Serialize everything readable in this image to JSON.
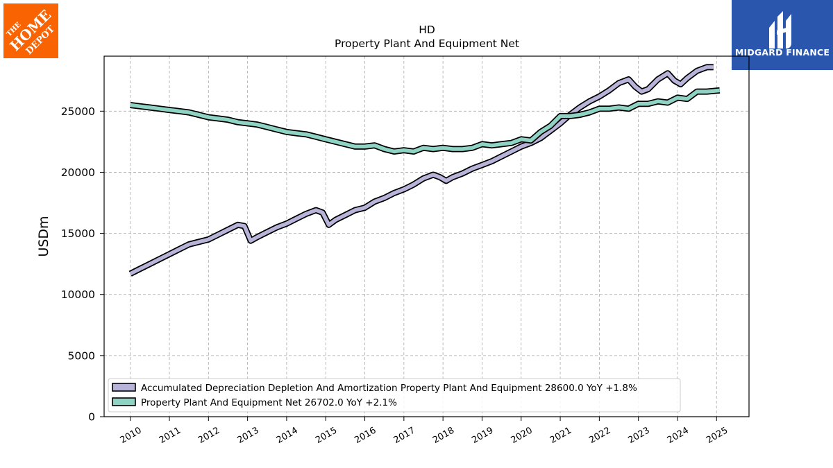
{
  "brand": {
    "left_logo_text": [
      "THE",
      "HOME",
      "DEPOT"
    ],
    "right_logo_name": "MIDGARD FINANCE",
    "left_logo_color": "#f96302",
    "right_logo_color": "#2a56ad"
  },
  "chart_data": {
    "type": "line",
    "title": "HD",
    "subtitle": "Property Plant And Equipment Net",
    "xlabel": "",
    "ylabel": "USDm",
    "ylim": [
      0,
      29500
    ],
    "xlim": [
      2009.33,
      2025.83
    ],
    "yticks": [
      0,
      5000,
      10000,
      15000,
      20000,
      25000
    ],
    "xticks": [
      2010,
      2011,
      2012,
      2013,
      2014,
      2015,
      2016,
      2017,
      2018,
      2019,
      2020,
      2021,
      2022,
      2023,
      2024,
      2025
    ],
    "grid": true,
    "legend_position": "lower-left",
    "series": [
      {
        "name": "Accumulated Depreciation Depletion And Amortization Property Plant And Equipment",
        "legend_label": "Accumulated Depreciation Depletion And Amortization Property Plant And Equipment  28600.0 YoY +1.8%",
        "color": "#b8b3d8",
        "x": [
          2010.0,
          2010.25,
          2010.5,
          2010.75,
          2011.0,
          2011.25,
          2011.5,
          2011.75,
          2012.0,
          2012.25,
          2012.5,
          2012.75,
          2012.92,
          2013.08,
          2013.25,
          2013.5,
          2013.75,
          2014.0,
          2014.25,
          2014.5,
          2014.75,
          2014.92,
          2015.08,
          2015.25,
          2015.5,
          2015.75,
          2016.0,
          2016.25,
          2016.5,
          2016.75,
          2017.0,
          2017.25,
          2017.5,
          2017.75,
          2017.92,
          2018.08,
          2018.25,
          2018.5,
          2018.75,
          2019.0,
          2019.25,
          2019.5,
          2019.75,
          2020.0,
          2020.25,
          2020.5,
          2020.75,
          2021.0,
          2021.25,
          2021.5,
          2021.75,
          2022.0,
          2022.25,
          2022.5,
          2022.75,
          2022.92,
          2023.08,
          2023.25,
          2023.5,
          2023.75,
          2023.92,
          2024.08,
          2024.25,
          2024.5,
          2024.75,
          2024.92
        ],
        "y": [
          11700,
          12100,
          12500,
          12900,
          13300,
          13700,
          14100,
          14300,
          14500,
          14900,
          15300,
          15700,
          15600,
          14400,
          14700,
          15100,
          15500,
          15800,
          16200,
          16600,
          16900,
          16700,
          15700,
          16100,
          16500,
          16900,
          17100,
          17600,
          17900,
          18300,
          18600,
          19000,
          19500,
          19800,
          19600,
          19300,
          19600,
          19900,
          20300,
          20600,
          20900,
          21300,
          21700,
          22100,
          22400,
          22800,
          23400,
          24000,
          24700,
          25300,
          25800,
          26200,
          26700,
          27300,
          27600,
          27000,
          26600,
          26800,
          27600,
          28100,
          27500,
          27200,
          27700,
          28300,
          28600,
          28600
        ]
      },
      {
        "name": "Property Plant And Equipment Net",
        "legend_label": "Property Plant And Equipment Net  26702.0 YoY +2.1%",
        "color": "#8fd3c4",
        "x": [
          2010.0,
          2010.25,
          2010.5,
          2010.75,
          2011.0,
          2011.25,
          2011.5,
          2011.75,
          2012.0,
          2012.25,
          2012.5,
          2012.75,
          2013.0,
          2013.25,
          2013.5,
          2013.75,
          2014.0,
          2014.25,
          2014.5,
          2014.75,
          2015.0,
          2015.25,
          2015.5,
          2015.75,
          2016.0,
          2016.25,
          2016.5,
          2016.75,
          2017.0,
          2017.25,
          2017.5,
          2017.75,
          2018.0,
          2018.25,
          2018.5,
          2018.75,
          2019.0,
          2019.25,
          2019.5,
          2019.75,
          2020.0,
          2020.25,
          2020.5,
          2020.75,
          2021.0,
          2021.25,
          2021.5,
          2021.75,
          2022.0,
          2022.25,
          2022.5,
          2022.75,
          2023.0,
          2023.25,
          2023.5,
          2023.75,
          2024.0,
          2024.25,
          2024.5,
          2024.75,
          2025.08
        ],
        "y": [
          25500,
          25400,
          25300,
          25200,
          25100,
          25000,
          24900,
          24700,
          24500,
          24400,
          24300,
          24100,
          24000,
          23900,
          23700,
          23500,
          23300,
          23200,
          23100,
          22900,
          22700,
          22500,
          22300,
          22100,
          22100,
          22200,
          21900,
          21700,
          21800,
          21700,
          22000,
          21900,
          22000,
          21900,
          21900,
          22000,
          22300,
          22200,
          22300,
          22400,
          22700,
          22600,
          23300,
          23800,
          24600,
          24600,
          24700,
          24900,
          25200,
          25200,
          25300,
          25200,
          25600,
          25600,
          25800,
          25700,
          26100,
          26000,
          26600,
          26600,
          26700
        ]
      }
    ]
  }
}
